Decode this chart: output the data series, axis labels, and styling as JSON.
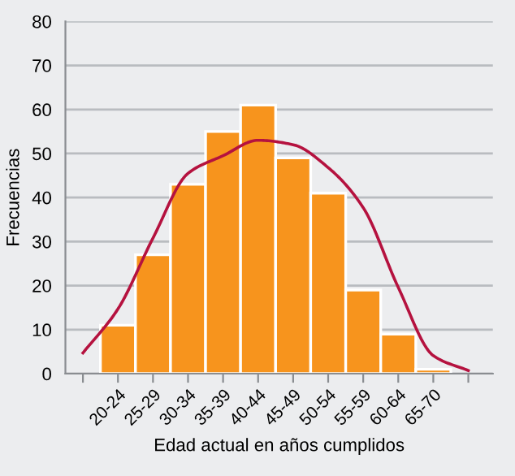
{
  "chart_data": {
    "type": "bar",
    "xlabel": "Edad actual en años cumplidos",
    "ylabel": "Frecuencias",
    "categories": [
      null,
      "20-24",
      "25-29",
      "30-34",
      "35-39",
      "40-44",
      "45-49",
      "50-54",
      "55-59",
      "60-64",
      "65-70",
      null
    ],
    "ylim": [
      0,
      80
    ],
    "yticks": [
      0,
      10,
      20,
      30,
      40,
      50,
      60,
      70,
      80
    ],
    "grid": "y",
    "series": [
      {
        "color": "#f7941d",
        "values": [
          null,
          11,
          27,
          43,
          55,
          61,
          49,
          41,
          19,
          9,
          1,
          null
        ]
      },
      {
        "type": "line",
        "color": "#b5123f",
        "marker": "none",
        "line_style": "solid",
        "values": [
          4.7,
          14.7,
          30.8,
          45.5,
          49.5,
          53,
          52,
          46.8,
          37.7,
          19.6,
          4.1,
          0.7
        ]
      }
    ]
  }
}
